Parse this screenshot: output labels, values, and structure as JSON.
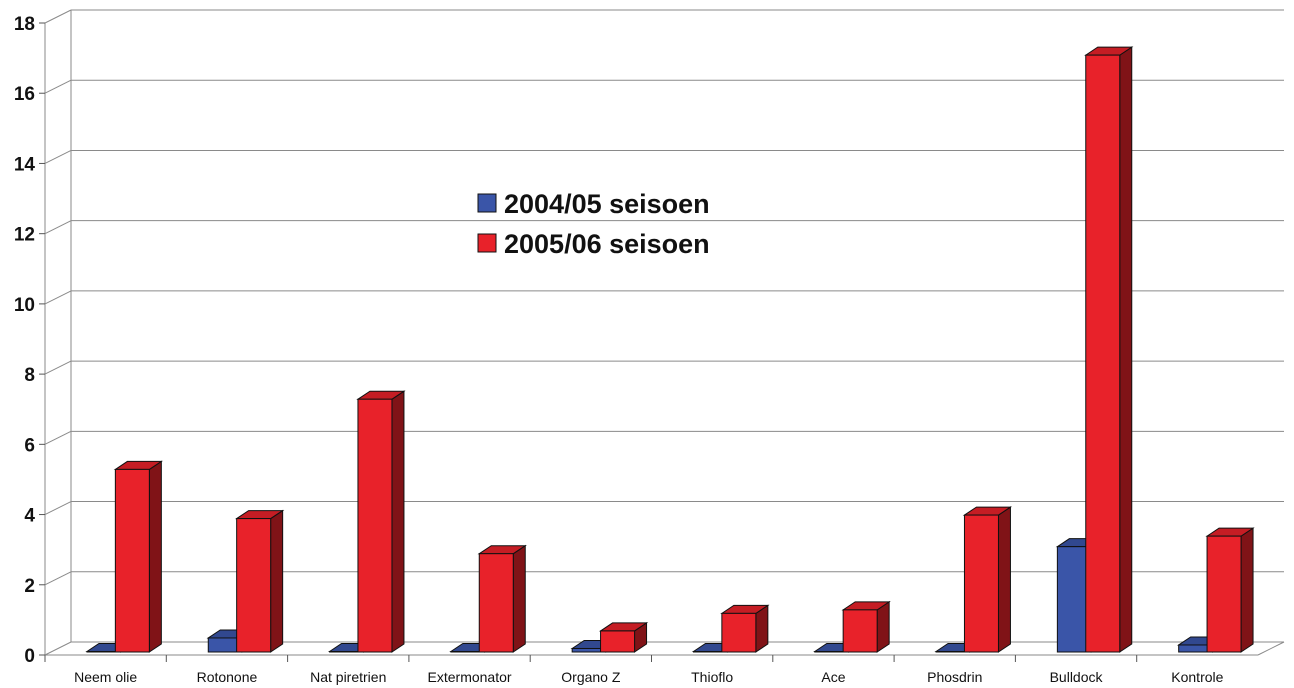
{
  "chart_data": {
    "type": "bar",
    "title": "",
    "xlabel": "",
    "ylabel": "",
    "ylim": [
      0,
      18
    ],
    "y_ticks": [
      "0",
      "2",
      "4",
      "6",
      "8",
      "10",
      "12",
      "14",
      "16",
      "18"
    ],
    "grid": true,
    "three_d": true,
    "legend_position": "center",
    "categories": [
      "Neem olie",
      "Rotonone",
      "Nat piretrien",
      "Extermonator",
      "Organo Z",
      "Thioflo",
      "Ace",
      "Phosdrin",
      "Bulldock",
      "Kontrole"
    ],
    "series": [
      {
        "name": "2004/05 seisoen",
        "color": "#3a55a8",
        "values": [
          0,
          0.4,
          0,
          0,
          0.1,
          0,
          0,
          0,
          3,
          0.2
        ]
      },
      {
        "name": "2005/06 seisoen",
        "color": "#e8222a",
        "values": [
          5.2,
          3.8,
          7.2,
          2.8,
          0.6,
          1.1,
          1.2,
          3.9,
          17,
          3.3
        ]
      }
    ]
  }
}
